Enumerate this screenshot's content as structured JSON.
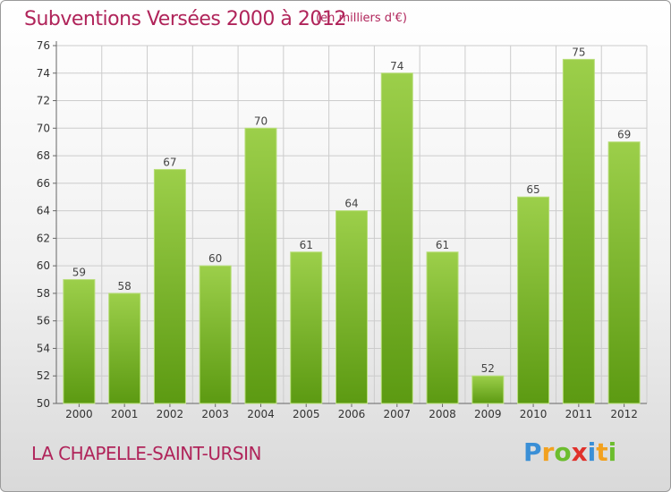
{
  "header": {
    "title": "Subventions Versées 2000 à 2012",
    "unit": "(en milliers d'€)"
  },
  "footer": {
    "commune": "LA CHAPELLE-SAINT-URSIN",
    "logo_text": "Proxiti",
    "logo_letters": [
      {
        "ch": "P",
        "color": "#3a8fd6"
      },
      {
        "ch": "r",
        "color": "#f2a11f"
      },
      {
        "ch": "o",
        "color": "#6cbd2e"
      },
      {
        "ch": "x",
        "color": "#e0312b"
      },
      {
        "ch": "i",
        "color": "#3a8fd6"
      },
      {
        "ch": "t",
        "color": "#f2a11f"
      },
      {
        "ch": "i",
        "color": "#6cbd2e"
      }
    ]
  },
  "colors": {
    "bar_top": "#9ccf4a",
    "bar_bottom": "#5c9a12",
    "title": "#b0245a",
    "grid": "#cccccc"
  },
  "chart_data": {
    "type": "bar",
    "categories": [
      "2000",
      "2001",
      "2002",
      "2003",
      "2004",
      "2005",
      "2006",
      "2007",
      "2008",
      "2009",
      "2010",
      "2011",
      "2012"
    ],
    "values": [
      59,
      58,
      67,
      60,
      70,
      61,
      64,
      74,
      61,
      52,
      65,
      75,
      69
    ],
    "ylim": [
      50,
      76
    ],
    "yticks": [
      50,
      52,
      54,
      56,
      58,
      60,
      62,
      64,
      66,
      68,
      70,
      72,
      74,
      76
    ],
    "grid": true,
    "data_labels": true
  }
}
